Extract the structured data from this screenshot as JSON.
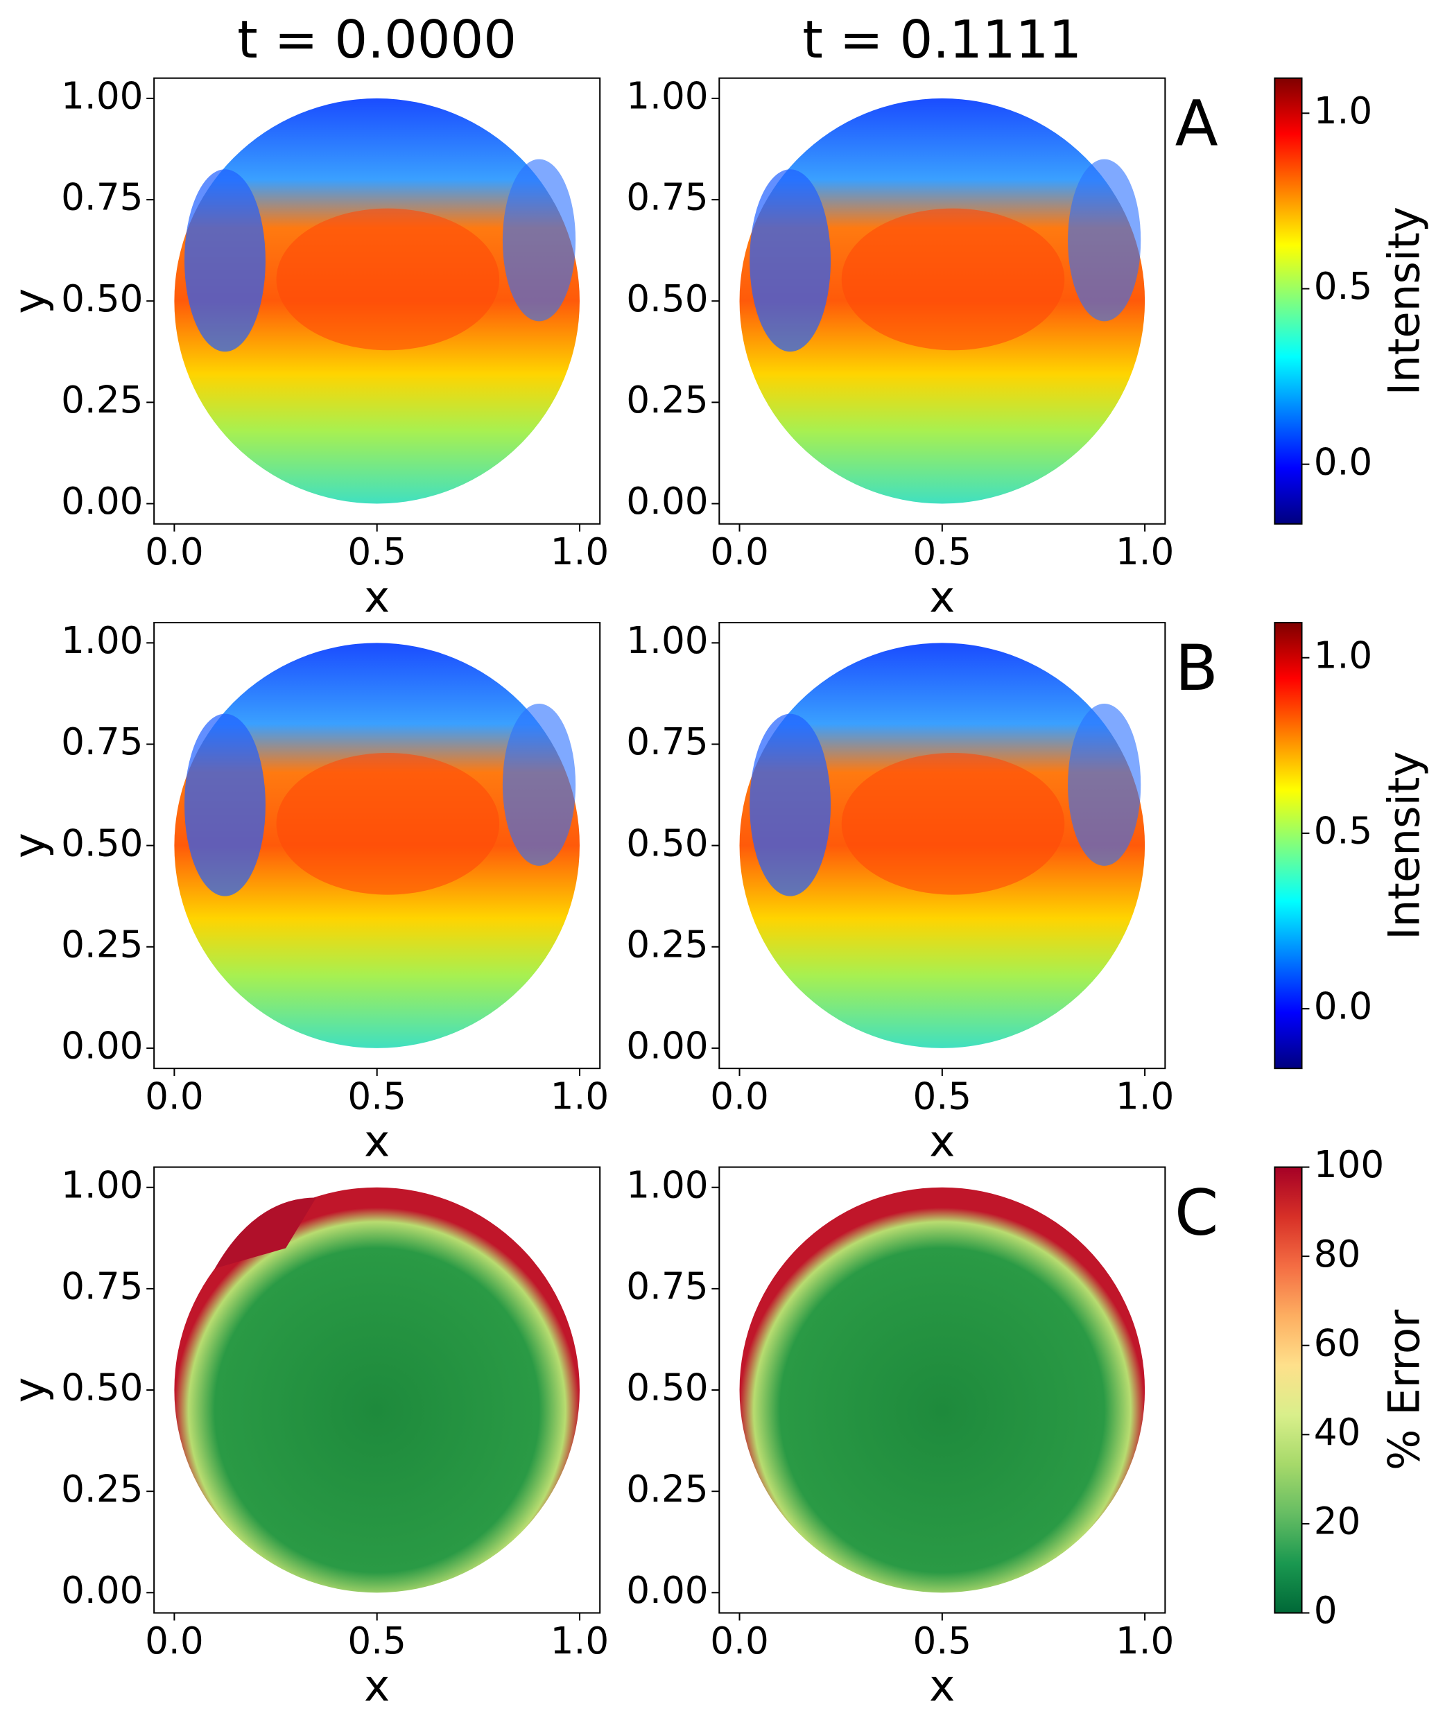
{
  "chart_data": [
    {
      "type": "heatmap",
      "title": "t = 0.0000",
      "colormap": "jet",
      "xlabel": "x",
      "ylabel": "y",
      "xlim": [
        -0.05,
        1.05
      ],
      "ylim": [
        -0.05,
        1.05
      ],
      "xticks": [
        {
          "value": 0,
          "label": "0.0"
        },
        0.5,
        {
          "value": 1,
          "label": "1.0"
        }
      ],
      "yticks": [
        {
          "value": 0,
          "label": "0.00"
        },
        0.25,
        {
          "value": 0.5,
          "label": "0.50"
        },
        0.75,
        {
          "value": 1,
          "label": "1.00"
        }
      ]
    },
    {
      "type": "heatmap",
      "title": "t = 0.1111",
      "colormap": "jet",
      "xlabel": "x",
      "xlim": [
        -0.05,
        1.05
      ],
      "ylim": [
        -0.05,
        1.05
      ],
      "xticks": [
        {
          "value": 0,
          "label": "0.0"
        },
        0.5,
        {
          "value": 1,
          "label": "1.0"
        }
      ],
      "yticks": [
        {
          "value": 0,
          "label": "0.00"
        },
        0.25,
        {
          "value": 0.5,
          "label": "0.50"
        },
        0.75,
        {
          "value": 1,
          "label": "1.00"
        }
      ]
    },
    {
      "type": "colorbar",
      "panel_label": "A",
      "label": "Intensity",
      "colormap": "jet",
      "ylim": [
        -0.17,
        1.1
      ],
      "yticks": [
        {
          "value": 0,
          "label": "0.0"
        },
        0.5,
        {
          "value": 1,
          "label": "1.0"
        }
      ]
    },
    {
      "type": "heatmap",
      "colormap": "jet",
      "xlabel": "x",
      "ylabel": "y",
      "xlim": [
        -0.05,
        1.05
      ],
      "ylim": [
        -0.05,
        1.05
      ],
      "xticks": [
        {
          "value": 0,
          "label": "0.0"
        },
        0.5,
        {
          "value": 1,
          "label": "1.0"
        }
      ],
      "yticks": [
        {
          "value": 0,
          "label": "0.00"
        },
        0.25,
        {
          "value": 0.5,
          "label": "0.50"
        },
        0.75,
        {
          "value": 1,
          "label": "1.00"
        }
      ]
    },
    {
      "type": "heatmap",
      "colormap": "jet",
      "xlabel": "x",
      "xlim": [
        -0.05,
        1.05
      ],
      "ylim": [
        -0.05,
        1.05
      ],
      "xticks": [
        {
          "value": 0,
          "label": "0.0"
        },
        0.5,
        {
          "value": 1,
          "label": "1.0"
        }
      ],
      "yticks": [
        {
          "value": 0,
          "label": "0.00"
        },
        0.25,
        {
          "value": 0.5,
          "label": "0.50"
        },
        0.75,
        {
          "value": 1,
          "label": "1.00"
        }
      ]
    },
    {
      "type": "colorbar",
      "panel_label": "B",
      "label": "Intensity",
      "colormap": "jet",
      "ylim": [
        -0.17,
        1.1
      ],
      "yticks": [
        {
          "value": 0,
          "label": "0.0"
        },
        0.5,
        {
          "value": 1,
          "label": "1.0"
        }
      ]
    },
    {
      "type": "heatmap",
      "colormap": "RdYlGn_r",
      "xlabel": "x",
      "ylabel": "y",
      "xlim": [
        -0.05,
        1.05
      ],
      "ylim": [
        -0.05,
        1.05
      ],
      "xticks": [
        {
          "value": 0,
          "label": "0.0"
        },
        0.5,
        {
          "value": 1,
          "label": "1.0"
        }
      ],
      "yticks": [
        {
          "value": 0,
          "label": "0.00"
        },
        0.25,
        {
          "value": 0.5,
          "label": "0.50"
        },
        0.75,
        {
          "value": 1,
          "label": "1.00"
        }
      ]
    },
    {
      "type": "heatmap",
      "colormap": "RdYlGn_r",
      "xlabel": "x",
      "xlim": [
        -0.05,
        1.05
      ],
      "ylim": [
        -0.05,
        1.05
      ],
      "xticks": [
        {
          "value": 0,
          "label": "0.0"
        },
        0.5,
        {
          "value": 1,
          "label": "1.0"
        }
      ],
      "yticks": [
        {
          "value": 0,
          "label": "0.00"
        },
        0.25,
        {
          "value": 0.5,
          "label": "0.50"
        },
        0.75,
        {
          "value": 1,
          "label": "1.00"
        }
      ]
    },
    {
      "type": "colorbar",
      "panel_label": "C",
      "label": "% Error",
      "colormap": "RdYlGn_r",
      "ylim": [
        0,
        100
      ],
      "yticks": [
        0,
        20,
        40,
        60,
        80,
        100
      ]
    }
  ]
}
